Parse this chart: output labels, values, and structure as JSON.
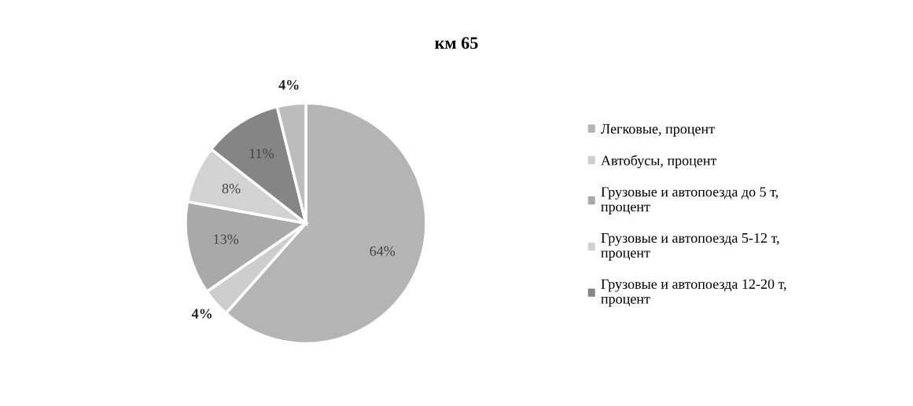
{
  "chart_data": {
    "type": "pie",
    "title": "км 65",
    "categories": [
      "Легковые, процент",
      "Автобусы, процент",
      "Грузовые и автопоезда до 5 т, процент",
      "Грузовые и автопоезда 5-12 т, процент",
      "Грузовые и автопоезда 12-20 т, процент",
      null
    ],
    "values": [
      64,
      4,
      13,
      8,
      11,
      4
    ],
    "value_labels": [
      "64%",
      "4%",
      "13%",
      "8%",
      "11%",
      "4%"
    ],
    "colors": [
      "#b4b4b4",
      "#cdcdcd",
      "#a9a9a9",
      "#d2d2d2",
      "#858585",
      "#bcbcbc"
    ],
    "legend": "right"
  }
}
